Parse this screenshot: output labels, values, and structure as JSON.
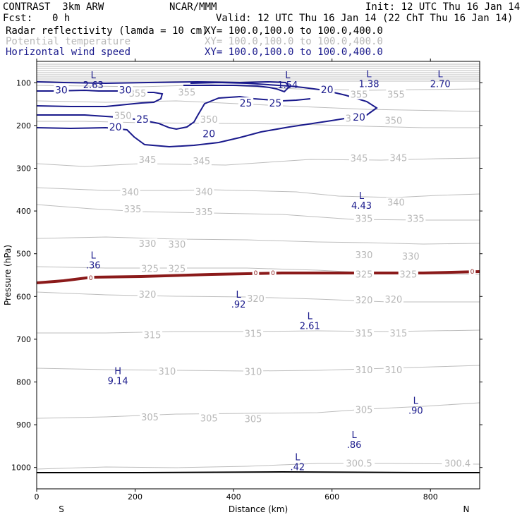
{
  "header": {
    "title": "CONTRAST  3km ARW",
    "center": "NCAR/MMM",
    "init": "Init: 12 UTC Thu 16 Jan 14",
    "fcst_label": "Fcst:",
    "fcst_value": "0 h",
    "valid": "Valid: 12 UTC Thu 16 Jan 14 (22 ChT Thu 16 Jan 14)",
    "fields": [
      {
        "name": "Radar reflectivity (lamda = 10 cm)",
        "xy": "XY= 100.0,100.0 to 100.0,400.0",
        "color": "#000000"
      },
      {
        "name": "Potential temperature",
        "xy": "XY= 100.0,100.0 to 100.0,400.0",
        "color": "#b8b8b8"
      },
      {
        "name": "Horizontal wind speed",
        "xy": "XY= 100.0,100.0 to 100.0,400.0",
        "color": "#1a1a8c"
      }
    ]
  },
  "chart_data": {
    "type": "contour",
    "title": "Cross-section: radar reflectivity, potential temperature, horizontal wind speed",
    "xlabel": "Distance (km)",
    "ylabel": "Pressure (hPa)",
    "xlim": [
      0,
      900
    ],
    "ylim": [
      1050,
      50
    ],
    "x_ticks": [
      0,
      200,
      400,
      600,
      800
    ],
    "y_ticks": [
      100,
      200,
      300,
      400,
      500,
      600,
      700,
      800,
      900,
      1000
    ],
    "x_end_labels": {
      "left": "S",
      "right": "N"
    },
    "theta_label_color": "#b8b8b8",
    "wind_color": "#1a1a8c",
    "zero_line_color": "#8b1a1a",
    "theta_labels": [
      {
        "text": "355",
        "x": 205,
        "p": 125
      },
      {
        "text": "355",
        "x": 305,
        "p": 122
      },
      {
        "text": "355",
        "x": 655,
        "p": 127
      },
      {
        "text": "355",
        "x": 730,
        "p": 127
      },
      {
        "text": "350",
        "x": 175,
        "p": 177
      },
      {
        "text": "350",
        "x": 350,
        "p": 186
      },
      {
        "text": "350",
        "x": 645,
        "p": 183
      },
      {
        "text": "350",
        "x": 725,
        "p": 188
      },
      {
        "text": "345",
        "x": 225,
        "p": 280
      },
      {
        "text": "345",
        "x": 335,
        "p": 283
      },
      {
        "text": "345",
        "x": 655,
        "p": 277
      },
      {
        "text": "345",
        "x": 735,
        "p": 276
      },
      {
        "text": "340",
        "x": 190,
        "p": 356
      },
      {
        "text": "340",
        "x": 340,
        "p": 355
      },
      {
        "text": "340",
        "x": 730,
        "p": 380
      },
      {
        "text": "335",
        "x": 195,
        "p": 395
      },
      {
        "text": "335",
        "x": 340,
        "p": 402
      },
      {
        "text": "335",
        "x": 665,
        "p": 418
      },
      {
        "text": "335",
        "x": 770,
        "p": 418
      },
      {
        "text": "330",
        "x": 225,
        "p": 476
      },
      {
        "text": "330",
        "x": 285,
        "p": 478
      },
      {
        "text": "330",
        "x": 665,
        "p": 503
      },
      {
        "text": "330",
        "x": 760,
        "p": 506
      },
      {
        "text": "325",
        "x": 230,
        "p": 535
      },
      {
        "text": "325",
        "x": 285,
        "p": 535
      },
      {
        "text": "325",
        "x": 665,
        "p": 548
      },
      {
        "text": "325",
        "x": 755,
        "p": 548
      },
      {
        "text": "320",
        "x": 225,
        "p": 595
      },
      {
        "text": "320",
        "x": 445,
        "p": 605
      },
      {
        "text": "320",
        "x": 665,
        "p": 608
      },
      {
        "text": "320",
        "x": 725,
        "p": 607
      },
      {
        "text": "315",
        "x": 235,
        "p": 690
      },
      {
        "text": "315",
        "x": 440,
        "p": 687
      },
      {
        "text": "315",
        "x": 665,
        "p": 686
      },
      {
        "text": "315",
        "x": 735,
        "p": 686
      },
      {
        "text": "310",
        "x": 265,
        "p": 775
      },
      {
        "text": "310",
        "x": 440,
        "p": 776
      },
      {
        "text": "310",
        "x": 665,
        "p": 772
      },
      {
        "text": "310",
        "x": 725,
        "p": 772
      },
      {
        "text": "305",
        "x": 230,
        "p": 882
      },
      {
        "text": "305",
        "x": 350,
        "p": 885
      },
      {
        "text": "305",
        "x": 440,
        "p": 886
      },
      {
        "text": "305",
        "x": 665,
        "p": 865
      },
      {
        "text": "300.5",
        "x": 655,
        "p": 990
      },
      {
        "text": "300.4",
        "x": 855,
        "p": 990
      }
    ],
    "wind_labels": [
      {
        "text": "30",
        "x": 50,
        "p": 117
      },
      {
        "text": "30",
        "x": 180,
        "p": 117
      },
      {
        "text": "20",
        "x": 590,
        "p": 116
      },
      {
        "text": "25",
        "x": 425,
        "p": 147
      },
      {
        "text": "25",
        "x": 485,
        "p": 147
      },
      {
        "text": "25",
        "x": 215,
        "p": 185
      },
      {
        "text": "20",
        "x": 655,
        "p": 180
      },
      {
        "text": "20",
        "x": 160,
        "p": 203
      },
      {
        "text": "20",
        "x": 350,
        "p": 219
      }
    ],
    "extrema": [
      {
        "type": "L",
        "value": "2.63",
        "x": 115,
        "p": 90
      },
      {
        "type": "L",
        "value": "1.54",
        "x": 510,
        "p": 90
      },
      {
        "type": "L",
        "value": "1.38",
        "x": 675,
        "p": 87
      },
      {
        "type": "L",
        "value": "2.70",
        "x": 820,
        "p": 87
      },
      {
        "type": "L",
        "value": "4.43",
        "x": 660,
        "p": 372
      },
      {
        "type": "L",
        "value": ".36",
        "x": 115,
        "p": 511
      },
      {
        "type": "L",
        "value": ".92",
        "x": 410,
        "p": 603
      },
      {
        "type": "L",
        "value": "2.61",
        "x": 555,
        "p": 653
      },
      {
        "type": "H",
        "value": "9.14",
        "x": 165,
        "p": 782
      },
      {
        "type": "L",
        "value": ".90",
        "x": 770,
        "p": 851
      },
      {
        "type": "L",
        "value": ".86",
        "x": 645,
        "p": 931
      },
      {
        "type": "L",
        "value": ".42",
        "x": 530,
        "p": 983
      }
    ],
    "zero_labels": [
      {
        "text": "0",
        "x": 110,
        "p": 556
      },
      {
        "text": "0",
        "x": 445,
        "p": 545
      },
      {
        "text": "0",
        "x": 480,
        "p": 545
      },
      {
        "text": "0",
        "x": 885,
        "p": 541
      }
    ]
  }
}
